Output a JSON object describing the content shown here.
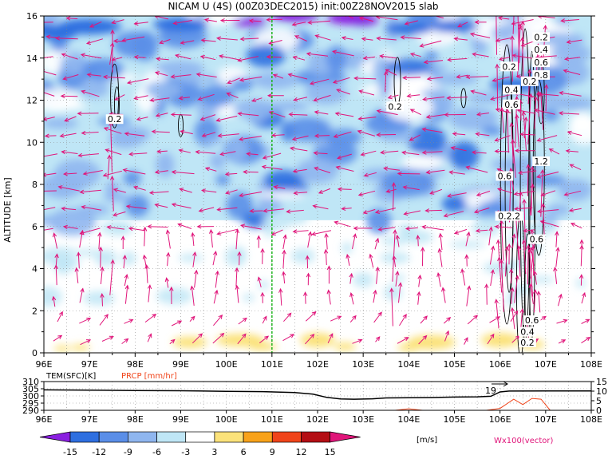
{
  "colors": {
    "c_n15": "#8a1fe0",
    "c_n12": "#2e6fe0",
    "c_n9": "#5a8ee8",
    "c_n6": "#8fb6ef",
    "c_n3": "#bfe6f6",
    "c_0": "#ffffff",
    "c_3": "#fbe27a",
    "c_6": "#f8a21a",
    "c_9": "#f0441a",
    "c_12": "#b40e14",
    "vector": "#e0157a",
    "marker_line": "#1db31d"
  },
  "chart_data": [
    {
      "type": "heatmap",
      "title": "NICAM U (4S) (00Z03DEC2015) init:00Z28NOV2015 slab",
      "ylabel": "ALTITUDE [km]",
      "xlabel": "",
      "x_ticks": [
        "96E",
        "97E",
        "98E",
        "99E",
        "100E",
        "101E",
        "102E",
        "103E",
        "104E",
        "105E",
        "106E",
        "107E",
        "108E"
      ],
      "y_ticks": [
        "0",
        "2",
        "4",
        "6",
        "8",
        "10",
        "12",
        "14",
        "16"
      ],
      "xlim": [
        96,
        108
      ],
      "ylim": [
        0,
        16
      ],
      "marker_lon": 101,
      "contour_labels": [
        {
          "text": "0.2",
          "lon": 97.55,
          "alt": 11.1
        },
        {
          "text": "0.2",
          "lon": 103.7,
          "alt": 11.7
        },
        {
          "text": "0.2",
          "lon": 106.9,
          "alt": 15.0
        },
        {
          "text": "0.4",
          "lon": 106.9,
          "alt": 14.4
        },
        {
          "text": "0.6",
          "lon": 106.9,
          "alt": 13.8
        },
        {
          "text": "0.8",
          "lon": 106.9,
          "alt": 13.2
        },
        {
          "text": "0.2",
          "lon": 106.2,
          "alt": 13.6
        },
        {
          "text": "0.2",
          "lon": 106.65,
          "alt": 12.9
        },
        {
          "text": "0.4",
          "lon": 106.25,
          "alt": 12.5
        },
        {
          "text": "0.6",
          "lon": 106.25,
          "alt": 11.8
        },
        {
          "text": "1.2",
          "lon": 106.9,
          "alt": 9.1
        },
        {
          "text": "0.6",
          "lon": 106.1,
          "alt": 8.4
        },
        {
          "text": "0.2.2",
          "lon": 106.2,
          "alt": 6.5
        },
        {
          "text": "0.6",
          "lon": 106.8,
          "alt": 5.4
        },
        {
          "text": "0.6",
          "lon": 106.7,
          "alt": 1.55
        },
        {
          "text": "0.4",
          "lon": 106.6,
          "alt": 1.0
        },
        {
          "text": "0.2",
          "lon": 106.6,
          "alt": 0.5
        }
      ]
    },
    {
      "type": "line",
      "title_left": "TEM(SFC)[K]",
      "title_right": "PRCP [mm/hr]",
      "left_ticks": [
        "310",
        "305",
        "300",
        "295",
        "290"
      ],
      "right_ticks": [
        "15",
        "10",
        "5",
        "0"
      ],
      "x_ticks": [
        "96E",
        "97E",
        "98E",
        "99E",
        "100E",
        "101E",
        "102E",
        "103E",
        "104E",
        "105E",
        "106E",
        "107E",
        "108E"
      ],
      "annotation": "19",
      "series": [
        {
          "name": "TEM(SFC)[K]",
          "x": [
            96,
            97,
            98,
            99,
            100,
            100.8,
            101.5,
            101.9,
            102.2,
            102.5,
            102.8,
            103.2,
            103.5,
            104,
            104.5,
            105,
            105.5,
            105.8,
            106,
            106.2,
            107,
            108
          ],
          "values": [
            304.2,
            304.0,
            303.8,
            303.6,
            303.2,
            303.0,
            302.4,
            301.2,
            299.0,
            297.9,
            297.7,
            298.0,
            298.6,
            298.8,
            298.9,
            299.2,
            299.4,
            299.8,
            302.8,
            303.4,
            303.5,
            303.5
          ]
        },
        {
          "name": "PRCP [mm/hr]",
          "x": [
            96,
            97,
            98,
            99,
            100,
            101,
            102,
            103,
            103.7,
            104,
            104.3,
            105,
            105.7,
            106.0,
            106.3,
            106.5,
            106.7,
            106.9,
            107.1,
            107.3,
            108
          ],
          "values": [
            0,
            0,
            0,
            0,
            0,
            0,
            0,
            0,
            0,
            0.8,
            0,
            0,
            0,
            1.0,
            5.8,
            3.0,
            6.2,
            5.8,
            0,
            0,
            0
          ]
        }
      ]
    }
  ],
  "colorbar": {
    "labels": [
      "-15",
      "-12",
      "-9",
      "-6",
      "-3",
      "3",
      "6",
      "9",
      "12",
      "15"
    ],
    "unit": "[m/s]",
    "vector_label": "Wx100(vector)"
  }
}
